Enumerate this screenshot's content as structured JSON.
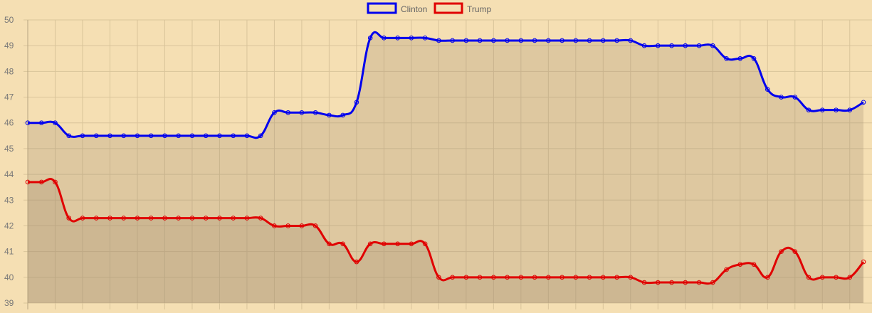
{
  "colors": {
    "background": "#f5dfb3",
    "grid": "#d9c49a",
    "axis_text": "#777777",
    "clinton": "#0000ee",
    "trump": "#e00000",
    "area": "rgba(160,140,110,0.28)"
  },
  "chart_data": {
    "type": "line",
    "title": "",
    "xlabel": "",
    "ylabel": "",
    "ylim": [
      39,
      50
    ],
    "yticks": [
      39,
      40,
      41,
      42,
      43,
      44,
      45,
      46,
      47,
      48,
      49,
      50
    ],
    "grid": true,
    "legend_position": "top-center",
    "series": [
      {
        "name": "Clinton",
        "color": "#0000ee",
        "values": [
          46.0,
          46.0,
          46.0,
          45.5,
          45.5,
          45.5,
          45.5,
          45.5,
          45.5,
          45.5,
          45.5,
          45.5,
          45.5,
          45.5,
          45.5,
          45.5,
          45.5,
          45.5,
          46.4,
          46.4,
          46.4,
          46.4,
          46.3,
          46.3,
          46.8,
          49.3,
          49.3,
          49.3,
          49.3,
          49.3,
          49.2,
          49.2,
          49.2,
          49.2,
          49.2,
          49.2,
          49.2,
          49.2,
          49.2,
          49.2,
          49.2,
          49.2,
          49.2,
          49.2,
          49.2,
          49.0,
          49.0,
          49.0,
          49.0,
          49.0,
          49.0,
          48.5,
          48.5,
          48.5,
          47.3,
          47.0,
          47.0,
          46.5,
          46.5,
          46.5,
          46.5,
          46.8
        ]
      },
      {
        "name": "Trump",
        "color": "#e00000",
        "values": [
          43.7,
          43.7,
          43.7,
          42.3,
          42.3,
          42.3,
          42.3,
          42.3,
          42.3,
          42.3,
          42.3,
          42.3,
          42.3,
          42.3,
          42.3,
          42.3,
          42.3,
          42.3,
          42.0,
          42.0,
          42.0,
          42.0,
          41.3,
          41.3,
          40.6,
          41.3,
          41.3,
          41.3,
          41.3,
          41.3,
          40.0,
          40.0,
          40.0,
          40.0,
          40.0,
          40.0,
          40.0,
          40.0,
          40.0,
          40.0,
          40.0,
          40.0,
          40.0,
          40.0,
          40.0,
          39.8,
          39.8,
          39.8,
          39.8,
          39.8,
          39.8,
          40.3,
          40.5,
          40.5,
          40.0,
          41.0,
          41.0,
          40.0,
          40.0,
          40.0,
          40.0,
          40.6
        ]
      }
    ]
  }
}
